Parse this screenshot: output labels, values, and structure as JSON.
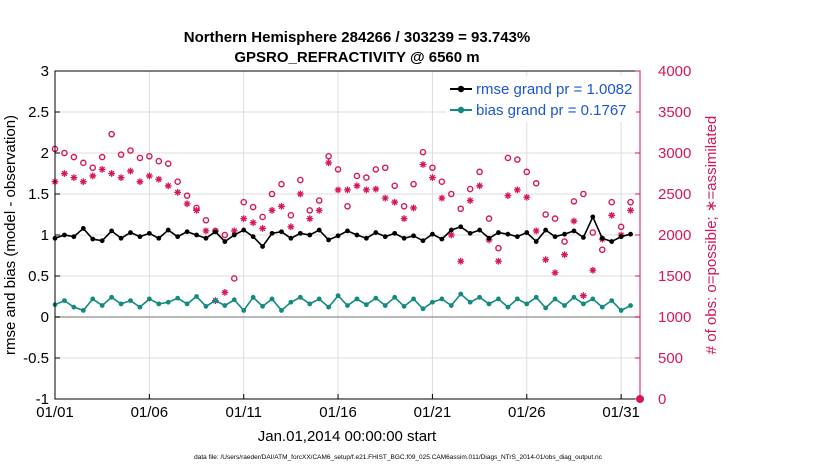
{
  "chart_data": {
    "type": "line",
    "title": "Northern Hemisphere 284266 / 303239 = 93.743%",
    "subtitle": "GPSRO_REFRACTIVITY @ 6560 m",
    "xlabel": "Jan.01,2014 00:00:00 start",
    "ylabel": "rmse and bias (model - observation)",
    "y2label": "# of obs: o=possible; ∗=assimilated",
    "xlim": [
      1,
      32
    ],
    "ylim": [
      -1,
      3
    ],
    "y2lim": [
      0,
      4000
    ],
    "x_ticks": [
      1,
      6,
      11,
      16,
      21,
      26,
      31
    ],
    "x_tick_labels": [
      "01/01",
      "01/06",
      "01/11",
      "01/16",
      "01/21",
      "01/26",
      "01/31"
    ],
    "y_ticks": [
      -1,
      -0.5,
      0,
      0.5,
      1,
      1.5,
      2,
      2.5,
      3
    ],
    "y_tick_labels": [
      "-1",
      "-0.5",
      "0",
      "0.5",
      "1",
      "1.5",
      "2",
      "2.5",
      "3"
    ],
    "y2_ticks": [
      0,
      500,
      1000,
      1500,
      2000,
      2500,
      3000,
      3500,
      4000
    ],
    "y2_tick_labels": [
      "0",
      "500",
      "1000",
      "1500",
      "2000",
      "2500",
      "3000",
      "3500",
      "4000"
    ],
    "grid": true,
    "legend_position": "top-right",
    "legend": [
      {
        "name": "rmse grand pr = 1.0082",
        "color": "#000000",
        "marker": "filled-circle"
      },
      {
        "name": "bias grand pr = 0.1767",
        "color": "#138a80",
        "marker": "filled-circle"
      }
    ],
    "series": [
      {
        "name": "rmse",
        "axis": "left",
        "color": "#000000",
        "style": "line-dot",
        "x": [
          1.0,
          1.5,
          2.0,
          2.5,
          3.0,
          3.5,
          4.0,
          4.5,
          5.0,
          5.5,
          6.0,
          6.5,
          7.0,
          7.5,
          8.0,
          8.5,
          9.0,
          9.5,
          10.0,
          10.5,
          11.0,
          11.5,
          12.0,
          12.5,
          13.0,
          13.5,
          14.0,
          14.5,
          15.0,
          15.5,
          16.0,
          16.5,
          17.0,
          17.5,
          18.0,
          18.5,
          19.0,
          19.5,
          20.0,
          20.5,
          21.0,
          21.5,
          22.0,
          22.5,
          23.0,
          23.5,
          24.0,
          24.5,
          25.0,
          25.5,
          26.0,
          26.5,
          27.0,
          27.5,
          28.0,
          28.5,
          29.0,
          29.5,
          30.0,
          30.5,
          31.0,
          31.5
        ],
        "values": [
          0.96,
          1.0,
          0.98,
          1.08,
          0.95,
          0.93,
          1.05,
          0.96,
          1.03,
          0.98,
          1.02,
          0.96,
          1.06,
          0.98,
          1.04,
          1.0,
          0.96,
          1.04,
          0.92,
          1.0,
          1.06,
          0.98,
          0.86,
          1.02,
          1.04,
          0.96,
          1.02,
          1.0,
          1.06,
          0.94,
          0.99,
          1.05,
          1.0,
          0.96,
          1.03,
          0.98,
          1.02,
          0.96,
          0.99,
          0.93,
          1.01,
          0.95,
          1.06,
          1.1,
          1.02,
          1.06,
          0.96,
          1.03,
          1.01,
          0.98,
          1.03,
          0.92,
          1.06,
          0.98,
          1.01,
          1.05,
          0.97,
          1.22,
          0.96,
          0.92,
          0.98,
          1.01
        ]
      },
      {
        "name": "bias",
        "axis": "left",
        "color": "#138a80",
        "style": "line-dot",
        "x": [
          1.0,
          1.5,
          2.0,
          2.5,
          3.0,
          3.5,
          4.0,
          4.5,
          5.0,
          5.5,
          6.0,
          6.5,
          7.0,
          7.5,
          8.0,
          8.5,
          9.0,
          9.5,
          10.0,
          10.5,
          11.0,
          11.5,
          12.0,
          12.5,
          13.0,
          13.5,
          14.0,
          14.5,
          15.0,
          15.5,
          16.0,
          16.5,
          17.0,
          17.5,
          18.0,
          18.5,
          19.0,
          19.5,
          20.0,
          20.5,
          21.0,
          21.5,
          22.0,
          22.5,
          23.0,
          23.5,
          24.0,
          24.5,
          25.0,
          25.5,
          26.0,
          26.5,
          27.0,
          27.5,
          28.0,
          28.5,
          29.0,
          29.5,
          30.0,
          30.5,
          31.0,
          31.5
        ],
        "values": [
          0.15,
          0.2,
          0.12,
          0.08,
          0.22,
          0.14,
          0.24,
          0.16,
          0.2,
          0.12,
          0.22,
          0.16,
          0.18,
          0.23,
          0.16,
          0.25,
          0.13,
          0.2,
          0.14,
          0.21,
          0.08,
          0.24,
          0.13,
          0.22,
          0.08,
          0.18,
          0.24,
          0.16,
          0.22,
          0.12,
          0.26,
          0.14,
          0.22,
          0.15,
          0.23,
          0.14,
          0.24,
          0.13,
          0.22,
          0.1,
          0.18,
          0.22,
          0.14,
          0.28,
          0.18,
          0.24,
          0.16,
          0.22,
          0.12,
          0.22,
          0.16,
          0.24,
          0.11,
          0.22,
          0.14,
          0.24,
          0.16,
          0.22,
          0.12,
          0.2,
          0.08,
          0.14
        ]
      },
      {
        "name": "possible",
        "axis": "right",
        "color": "#d6175c",
        "style": "open-circle",
        "x": [
          1.0,
          1.5,
          2.0,
          2.5,
          3.0,
          3.5,
          4.0,
          4.5,
          5.0,
          5.5,
          6.0,
          6.5,
          7.0,
          7.5,
          8.0,
          8.5,
          9.0,
          9.5,
          10.0,
          10.5,
          11.0,
          11.5,
          12.0,
          12.5,
          13.0,
          13.5,
          14.0,
          14.5,
          15.0,
          15.5,
          16.0,
          16.5,
          17.0,
          17.5,
          18.0,
          18.5,
          19.0,
          19.5,
          20.0,
          20.5,
          21.0,
          21.5,
          22.0,
          22.5,
          23.0,
          23.5,
          24.0,
          24.5,
          25.0,
          25.5,
          26.0,
          26.5,
          27.0,
          27.5,
          28.0,
          28.5,
          29.0,
          29.5,
          30.0,
          30.5,
          31.0,
          31.5
        ],
        "values": [
          3050,
          3000,
          2950,
          2880,
          2820,
          2950,
          3230,
          2980,
          3030,
          2940,
          2960,
          2900,
          2870,
          2650,
          2480,
          2330,
          2180,
          2050,
          2000,
          1470,
          2400,
          2340,
          2220,
          2500,
          2620,
          2240,
          2670,
          2300,
          2420,
          2960,
          2800,
          2350,
          2720,
          2700,
          2800,
          2820,
          2600,
          2350,
          2620,
          3010,
          2820,
          2650,
          2500,
          2320,
          2560,
          2770,
          2200,
          1840,
          2940,
          2920,
          2770,
          2630,
          2250,
          2200,
          1920,
          2410,
          2500,
          2030,
          1820,
          2400,
          2100,
          2400
        ]
      },
      {
        "name": "assimilated",
        "axis": "right",
        "color": "#d6175c",
        "style": "asterisk",
        "x": [
          1.0,
          1.5,
          2.0,
          2.5,
          3.0,
          3.5,
          4.0,
          4.5,
          5.0,
          5.5,
          6.0,
          6.5,
          7.0,
          7.5,
          8.0,
          8.5,
          9.0,
          9.5,
          10.0,
          10.5,
          11.0,
          11.5,
          12.0,
          12.5,
          13.0,
          13.5,
          14.0,
          14.5,
          15.0,
          15.5,
          16.0,
          16.5,
          17.0,
          17.5,
          18.0,
          18.5,
          19.0,
          19.5,
          20.0,
          20.5,
          21.0,
          21.5,
          22.0,
          22.5,
          23.0,
          23.5,
          24.0,
          24.5,
          25.0,
          25.5,
          26.0,
          26.5,
          27.0,
          27.5,
          28.0,
          28.5,
          29.0,
          29.5,
          30.0,
          30.5,
          31.0,
          31.5
        ],
        "values": [
          2650,
          2750,
          2700,
          2650,
          2720,
          2800,
          2750,
          2700,
          2780,
          2650,
          2720,
          2680,
          2600,
          2520,
          2380,
          2300,
          2050,
          1200,
          1300,
          2050,
          2200,
          2150,
          2080,
          2300,
          2350,
          2100,
          2500,
          2200,
          2300,
          2880,
          2550,
          2550,
          2600,
          2550,
          2560,
          2450,
          2400,
          2200,
          2330,
          2860,
          2700,
          2450,
          2000,
          1680,
          2420,
          2600,
          1940,
          1680,
          2480,
          2550,
          2460,
          2050,
          1700,
          1540,
          1760,
          2170,
          1260,
          1570,
          1950,
          2240,
          2000,
          2300
        ]
      }
    ]
  },
  "footnote": "data file: /Users/raeder/DAI/ATM_forcXX/CAM6_setup/f.e21.FHIST_BGC.f09_025.CAM6assim.011/Diags_NTrS_2014-01/obs_diag_output.nc",
  "colors": {
    "left_axis": "#000000",
    "right_axis": "#d6175c",
    "grid": "#dcdcdc",
    "zero_line": "#a0a0a0",
    "legend_text": "#1a56d6"
  }
}
